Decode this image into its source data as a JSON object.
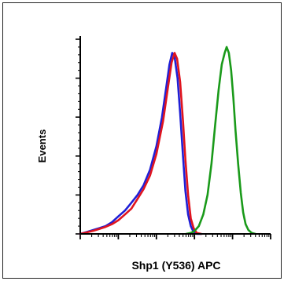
{
  "chart_data": {
    "type": "line",
    "title": "",
    "xlabel": "Shp1 (Y536) APC",
    "ylabel": "Events",
    "x_scale": "log",
    "xlim": [
      1,
      100000
    ],
    "ylim": [
      0,
      100
    ],
    "grid": false,
    "legend": "none",
    "series": [
      {
        "color": "#1f1fd6",
        "points": [
          [
            1.0,
            0
          ],
          [
            1.5,
            1
          ],
          [
            2.2,
            2
          ],
          [
            3.2,
            3
          ],
          [
            4.6,
            4
          ],
          [
            6.8,
            6
          ],
          [
            10,
            9
          ],
          [
            15,
            12
          ],
          [
            22,
            16
          ],
          [
            32,
            20
          ],
          [
            46,
            25
          ],
          [
            68,
            33
          ],
          [
            100,
            45
          ],
          [
            140,
            60
          ],
          [
            180,
            75
          ],
          [
            220,
            87
          ],
          [
            260,
            93
          ],
          [
            300,
            91
          ],
          [
            360,
            80
          ],
          [
            420,
            62
          ],
          [
            500,
            40
          ],
          [
            580,
            22
          ],
          [
            680,
            10
          ],
          [
            800,
            4
          ],
          [
            950,
            1
          ],
          [
            1150,
            0
          ],
          [
            1500,
            0
          ]
        ]
      },
      {
        "color": "#e0141e",
        "points": [
          [
            1.0,
            0
          ],
          [
            1.5,
            0.8
          ],
          [
            2.2,
            1.6
          ],
          [
            3.2,
            2.6
          ],
          [
            4.6,
            3.6
          ],
          [
            6.8,
            5
          ],
          [
            10,
            7
          ],
          [
            15,
            10
          ],
          [
            22,
            13
          ],
          [
            32,
            18
          ],
          [
            46,
            23
          ],
          [
            68,
            30
          ],
          [
            100,
            41
          ],
          [
            150,
            58
          ],
          [
            200,
            75
          ],
          [
            250,
            88
          ],
          [
            300,
            93
          ],
          [
            350,
            90
          ],
          [
            420,
            78
          ],
          [
            500,
            58
          ],
          [
            580,
            38
          ],
          [
            680,
            20
          ],
          [
            800,
            8
          ],
          [
            950,
            3
          ],
          [
            1150,
            0.5
          ],
          [
            1500,
            0
          ]
        ]
      },
      {
        "color": "#1a9a1a",
        "points": [
          [
            600,
            0
          ],
          [
            800,
            0.5
          ],
          [
            1000,
            1.5
          ],
          [
            1300,
            4
          ],
          [
            1700,
            10
          ],
          [
            2200,
            20
          ],
          [
            2800,
            36
          ],
          [
            3500,
            56
          ],
          [
            4300,
            74
          ],
          [
            5200,
            87
          ],
          [
            6200,
            93
          ],
          [
            7000,
            96
          ],
          [
            8000,
            93
          ],
          [
            9200,
            84
          ],
          [
            10500,
            70
          ],
          [
            12000,
            53
          ],
          [
            14000,
            36
          ],
          [
            16500,
            21
          ],
          [
            19000,
            11
          ],
          [
            22000,
            5
          ],
          [
            26000,
            2
          ],
          [
            32000,
            0.5
          ],
          [
            40000,
            0
          ]
        ]
      }
    ]
  }
}
